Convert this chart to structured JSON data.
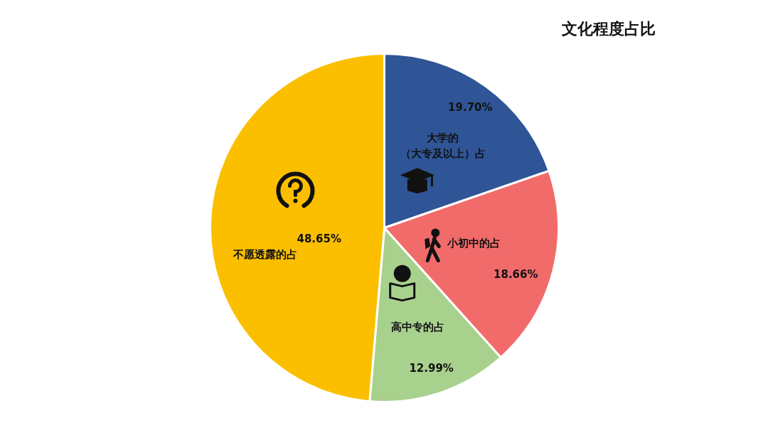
{
  "chart_data": {
    "type": "pie",
    "title": "文化程度占比",
    "categories": [
      "大学的（大专及以上）占",
      "小初中的占",
      "高中专的占",
      "不愿透露的占"
    ],
    "values": [
      19.7,
      18.66,
      12.99,
      48.65
    ],
    "colors": [
      "#2f5597",
      "#f26b6b",
      "#a9d18e",
      "#fbbf00"
    ],
    "value_labels": [
      "19.70%",
      "18.66%",
      "12.99%",
      "48.65%"
    ]
  }
}
